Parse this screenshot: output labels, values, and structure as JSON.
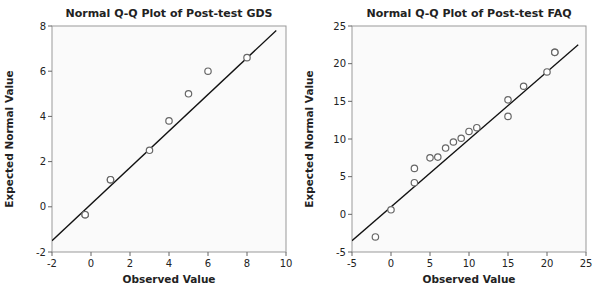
{
  "chart_data": [
    {
      "type": "scatter",
      "title": "Normal Q-Q Plot of Post-test GDS",
      "xlabel": "Observed Value",
      "ylabel": "Expected Normal Value",
      "xlim": [
        -2,
        10
      ],
      "ylim": [
        -2,
        8
      ],
      "xticks": [
        -2,
        0,
        2,
        4,
        6,
        8,
        10
      ],
      "yticks": [
        -2,
        0,
        2,
        4,
        6,
        8
      ],
      "grid": false,
      "series": [
        {
          "type": "line",
          "color": "#111111",
          "x": [
            -2,
            9.5
          ],
          "values": [
            -1.5,
            7.8
          ]
        },
        {
          "type": "scatter",
          "color": "#666666",
          "marker": "circle",
          "x": [
            -0.3,
            -0.3,
            1.0,
            1.0,
            3.0,
            4.0,
            5.0,
            6.0,
            8.0
          ],
          "values": [
            -0.35,
            -0.35,
            1.2,
            1.2,
            2.5,
            3.8,
            5.0,
            6.0,
            6.6
          ]
        }
      ]
    },
    {
      "type": "scatter",
      "title": "Normal Q-Q Plot of Post-test FAQ",
      "xlabel": "Observed Value",
      "ylabel": "Expected Normal Value",
      "xlim": [
        -5,
        25
      ],
      "ylim": [
        -5,
        25
      ],
      "xticks": [
        -5,
        0,
        5,
        10,
        15,
        20,
        25
      ],
      "yticks": [
        -5,
        0,
        5,
        10,
        15,
        20,
        25
      ],
      "grid": false,
      "series": [
        {
          "type": "line",
          "color": "#111111",
          "x": [
            -5,
            24
          ],
          "values": [
            -3.5,
            22.5
          ]
        },
        {
          "type": "scatter",
          "color": "#666666",
          "marker": "circle",
          "x": [
            -2,
            0,
            3,
            3,
            5,
            6,
            7,
            8,
            9,
            10,
            11,
            15,
            15,
            17,
            20,
            21,
            21
          ],
          "values": [
            -3.0,
            0.6,
            4.2,
            6.1,
            7.5,
            7.6,
            8.8,
            9.6,
            10.1,
            11.0,
            11.5,
            13.0,
            15.2,
            17.0,
            18.9,
            21.5,
            21.5
          ]
        }
      ]
    }
  ]
}
